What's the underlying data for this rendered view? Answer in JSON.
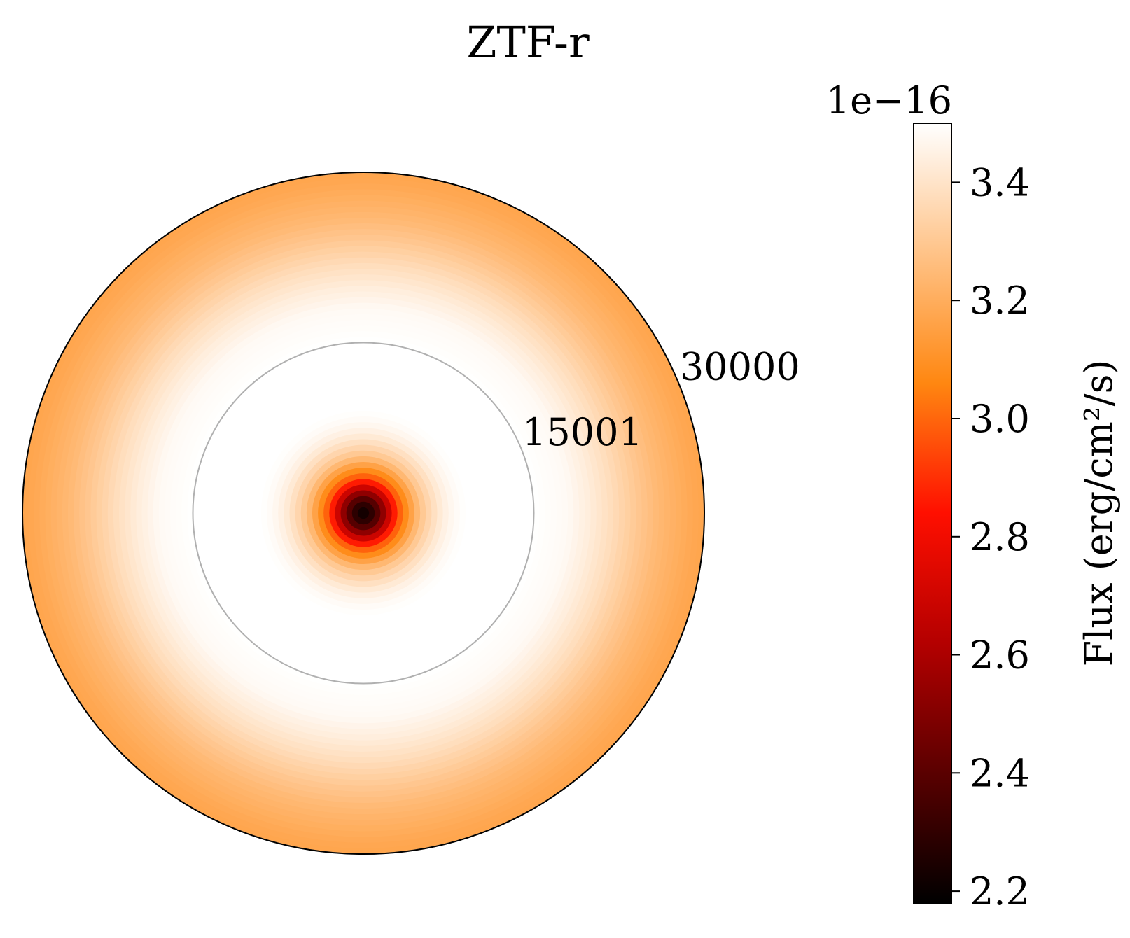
{
  "chart_data": {
    "type": "heatmap",
    "subtype": "polar-radial-contour",
    "title": "ZTF-r",
    "radial_axis": {
      "range": [
        0,
        30000
      ],
      "ticks": [
        15001,
        30000
      ],
      "tick_labels": [
        "15001",
        "30000"
      ],
      "grid": true
    },
    "angular_axis": {
      "ticks_shown": false
    },
    "radial_profile": {
      "r": [
        0,
        1000,
        2000,
        3000,
        4000,
        5000,
        6000,
        7000,
        8000,
        9000,
        10000,
        12000,
        15001,
        18000,
        20000,
        22000,
        24000,
        26000,
        28000,
        29000,
        30000
      ],
      "flux": [
        2.2,
        2.32,
        2.6,
        2.95,
        3.12,
        3.28,
        3.37,
        3.44,
        3.48,
        3.5,
        3.5,
        3.5,
        3.5,
        3.48,
        3.43,
        3.37,
        3.3,
        3.24,
        3.2,
        3.18,
        3.17
      ]
    },
    "colorbar": {
      "label": "Flux (erg/cm²/s)",
      "offset_text": "1e−16",
      "range": [
        2.18,
        3.5
      ],
      "ticks": [
        2.2,
        2.4,
        2.6,
        2.8,
        3.0,
        3.2,
        3.4
      ],
      "tick_labels": [
        "2.2",
        "2.4",
        "2.6",
        "2.8",
        "3.0",
        "3.2",
        "3.4"
      ],
      "colormap": "gist_heat",
      "colors": [
        "#000000",
        "#5a0000",
        "#b40000",
        "#ff0f00",
        "#ff8711",
        "#ffc388",
        "#ffffff"
      ]
    },
    "grid_color": "#b0b0b0"
  }
}
